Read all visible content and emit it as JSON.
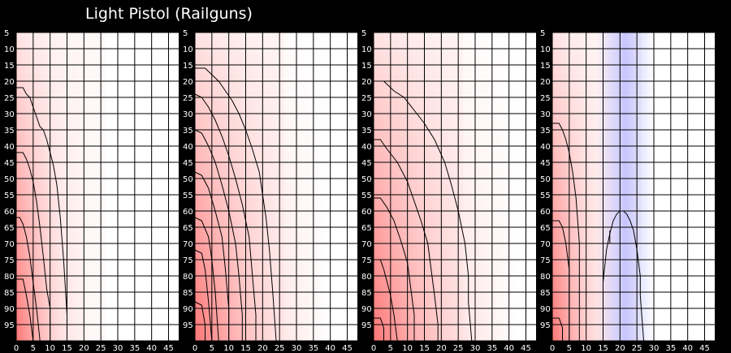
{
  "title": "Light Pistol (Railguns)",
  "colors": {
    "background": "#000000",
    "grid": "#000000",
    "panel_bg": "#ffffff",
    "damage_high": "#ff5050",
    "damage_mid": "#ffc8c8",
    "special_blue": "#c0c0ff",
    "contour": "#000000",
    "tick_text": "#ffffff"
  },
  "chart_data": [
    {
      "type": "heatmap",
      "panel": 1,
      "xlim": [
        0,
        48
      ],
      "ylim": [
        5,
        100
      ],
      "x_ticks": [
        0,
        5,
        10,
        15,
        20,
        25,
        30,
        35,
        40,
        45
      ],
      "y_ticks": [
        5,
        10,
        15,
        20,
        25,
        30,
        35,
        40,
        45,
        50,
        55,
        60,
        65,
        70,
        75,
        80,
        85,
        90,
        95
      ],
      "heat_extent": 12,
      "heat_color": "red",
      "contours": [
        [
          [
            0,
            22
          ],
          [
            2,
            22
          ],
          [
            3,
            24
          ],
          [
            4,
            25
          ],
          [
            5,
            28
          ],
          [
            6,
            31
          ],
          [
            7,
            34
          ],
          [
            8,
            35
          ],
          [
            9,
            38
          ],
          [
            10,
            42
          ],
          [
            11,
            46
          ],
          [
            12,
            52
          ],
          [
            13,
            62
          ],
          [
            14,
            75
          ],
          [
            15,
            92
          ],
          [
            15,
            100
          ]
        ],
        [
          [
            0,
            42
          ],
          [
            2,
            42
          ],
          [
            3,
            44
          ],
          [
            4,
            47
          ],
          [
            5,
            51
          ],
          [
            6,
            57
          ],
          [
            7,
            65
          ],
          [
            8,
            74
          ],
          [
            9,
            84
          ],
          [
            10,
            90
          ],
          [
            10,
            100
          ]
        ],
        [
          [
            0,
            62
          ],
          [
            1,
            62
          ],
          [
            2,
            64
          ],
          [
            3,
            68
          ],
          [
            4,
            74
          ],
          [
            5,
            82
          ],
          [
            6,
            90
          ],
          [
            7,
            100
          ]
        ],
        [
          [
            0,
            81
          ],
          [
            2,
            81
          ],
          [
            3,
            86
          ],
          [
            4,
            92
          ],
          [
            5,
            100
          ]
        ]
      ]
    },
    {
      "type": "heatmap",
      "panel": 2,
      "xlim": [
        0,
        48
      ],
      "ylim": [
        5,
        100
      ],
      "x_ticks": [
        0,
        5,
        10,
        15,
        20,
        25,
        30,
        35,
        40,
        45
      ],
      "y_ticks": [
        5,
        10,
        15,
        20,
        25,
        30,
        35,
        40,
        45,
        50,
        55,
        60,
        65,
        70,
        75,
        80,
        85,
        90,
        95
      ],
      "heat_extent": 22,
      "heat_color": "red",
      "contours": [
        [
          [
            0,
            16
          ],
          [
            3,
            16
          ],
          [
            5,
            18
          ],
          [
            7,
            20
          ],
          [
            9,
            23
          ],
          [
            11,
            26
          ],
          [
            13,
            30
          ],
          [
            15,
            35
          ],
          [
            17,
            41
          ],
          [
            19,
            48
          ],
          [
            20,
            55
          ],
          [
            21,
            62
          ],
          [
            22,
            72
          ],
          [
            23,
            85
          ],
          [
            24,
            100
          ]
        ],
        [
          [
            0,
            24
          ],
          [
            2,
            25
          ],
          [
            4,
            28
          ],
          [
            6,
            32
          ],
          [
            8,
            37
          ],
          [
            10,
            43
          ],
          [
            12,
            50
          ],
          [
            14,
            58
          ],
          [
            16,
            68
          ],
          [
            17,
            80
          ],
          [
            18,
            92
          ],
          [
            18,
            100
          ]
        ],
        [
          [
            0,
            35
          ],
          [
            2,
            36
          ],
          [
            4,
            40
          ],
          [
            6,
            45
          ],
          [
            8,
            52
          ],
          [
            10,
            60
          ],
          [
            12,
            70
          ],
          [
            13,
            80
          ],
          [
            14,
            92
          ],
          [
            14,
            100
          ]
        ],
        [
          [
            0,
            48
          ],
          [
            2,
            49
          ],
          [
            4,
            53
          ],
          [
            6,
            60
          ],
          [
            8,
            68
          ],
          [
            9,
            78
          ],
          [
            10,
            90
          ],
          [
            10,
            100
          ]
        ],
        [
          [
            0,
            62
          ],
          [
            2,
            63
          ],
          [
            4,
            68
          ],
          [
            5,
            75
          ],
          [
            6,
            85
          ],
          [
            7,
            100
          ]
        ],
        [
          [
            0,
            72
          ],
          [
            2,
            73
          ],
          [
            3,
            78
          ],
          [
            4,
            88
          ],
          [
            5,
            100
          ]
        ],
        [
          [
            0,
            88
          ],
          [
            2,
            89
          ],
          [
            3,
            95
          ],
          [
            3,
            100
          ]
        ]
      ]
    },
    {
      "type": "heatmap",
      "panel": 3,
      "xlim": [
        0,
        48
      ],
      "ylim": [
        5,
        100
      ],
      "x_ticks": [
        0,
        5,
        10,
        15,
        20,
        25,
        30,
        35,
        40,
        45
      ],
      "y_ticks": [
        5,
        10,
        15,
        20,
        25,
        30,
        35,
        40,
        45,
        50,
        55,
        60,
        65,
        70,
        75,
        80,
        85,
        90,
        95
      ],
      "heat_extent": 24,
      "heat_color": "red",
      "contours": [
        [
          [
            0,
            20
          ],
          [
            3,
            20
          ],
          [
            6,
            23
          ],
          [
            9,
            25
          ],
          [
            12,
            29
          ],
          [
            15,
            33
          ],
          [
            18,
            38
          ],
          [
            21,
            45
          ],
          [
            23,
            52
          ],
          [
            25,
            60
          ],
          [
            27,
            70
          ],
          [
            28,
            80
          ],
          [
            28,
            88
          ],
          [
            29,
            100
          ]
        ],
        [
          [
            0,
            38
          ],
          [
            2,
            38
          ],
          [
            4,
            41
          ],
          [
            7,
            45
          ],
          [
            10,
            51
          ],
          [
            12,
            57
          ],
          [
            14,
            63
          ],
          [
            16,
            70
          ],
          [
            17,
            78
          ],
          [
            18,
            86
          ],
          [
            19,
            95
          ],
          [
            19,
            100
          ]
        ],
        [
          [
            0,
            56
          ],
          [
            2,
            56
          ],
          [
            4,
            59
          ],
          [
            6,
            63
          ],
          [
            8,
            69
          ],
          [
            10,
            76
          ],
          [
            11,
            84
          ],
          [
            12,
            92
          ],
          [
            12,
            100
          ]
        ],
        [
          [
            0,
            75
          ],
          [
            2,
            75
          ],
          [
            3,
            78
          ],
          [
            4,
            82
          ],
          [
            5,
            86
          ],
          [
            6,
            92
          ],
          [
            7,
            100
          ]
        ],
        [
          [
            0,
            93
          ],
          [
            2,
            93
          ],
          [
            3,
            96
          ],
          [
            3,
            100
          ]
        ]
      ]
    },
    {
      "type": "heatmap",
      "panel": 4,
      "xlim": [
        0,
        48
      ],
      "ylim": [
        5,
        100
      ],
      "x_ticks": [
        0,
        5,
        10,
        15,
        20,
        25,
        30,
        35,
        40,
        45
      ],
      "y_ticks": [
        5,
        10,
        15,
        20,
        25,
        30,
        35,
        40,
        45,
        50,
        55,
        60,
        65,
        70,
        75,
        80,
        85,
        90,
        95
      ],
      "heat_extent": 12,
      "heat_color": "red",
      "blue_band": [
        13,
        30
      ],
      "contours": [
        [
          [
            0,
            33
          ],
          [
            2,
            33
          ],
          [
            3,
            35
          ],
          [
            4,
            38
          ],
          [
            5,
            42
          ],
          [
            6,
            48
          ],
          [
            7,
            56
          ],
          [
            8,
            70
          ],
          [
            8,
            100
          ]
        ],
        [
          [
            0,
            63
          ],
          [
            2,
            63
          ],
          [
            3,
            65
          ],
          [
            4,
            70
          ],
          [
            5,
            78
          ],
          [
            5,
            100
          ]
        ],
        [
          [
            0,
            93
          ],
          [
            2,
            93
          ],
          [
            3,
            96
          ],
          [
            3,
            100
          ]
        ],
        [
          [
            15,
            100
          ],
          [
            15,
            82
          ],
          [
            16,
            72
          ],
          [
            17,
            67
          ],
          [
            18,
            63
          ],
          [
            19,
            61
          ],
          [
            20,
            60
          ],
          [
            21,
            60
          ],
          [
            22,
            61
          ],
          [
            23,
            63
          ],
          [
            24,
            66
          ],
          [
            25,
            72
          ],
          [
            26,
            80
          ],
          [
            26,
            86
          ],
          [
            27,
            100
          ]
        ],
        [
          [
            17,
            70
          ],
          [
            17,
            66
          ]
        ]
      ]
    }
  ]
}
